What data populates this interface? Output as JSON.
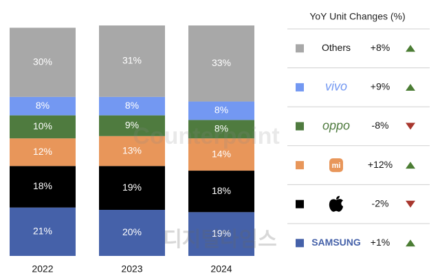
{
  "chart_data": {
    "type": "stacked-bar",
    "categories": [
      "2022",
      "2023",
      "2024"
    ],
    "series": [
      {
        "name": "SAMSUNG",
        "color": "#4561a9",
        "values": [
          21,
          20,
          19
        ],
        "value_labels": [
          "21%",
          "20%",
          "19%"
        ],
        "yoy": 1,
        "yoy_label": "+1%"
      },
      {
        "color": "#000000",
        "values": [
          18,
          19,
          18
        ],
        "value_labels": [
          "18%",
          "19%",
          "18%"
        ],
        "yoy": -2,
        "yoy_label": "-2%"
      },
      {
        "name": "mi",
        "color": "#e8965a",
        "values": [
          12,
          13,
          14
        ],
        "value_labels": [
          "12%",
          "13%",
          "14%"
        ],
        "yoy": 12,
        "yoy_label": "+12%"
      },
      {
        "name": "oppo",
        "color": "#4f7b3f",
        "values": [
          10,
          9,
          8
        ],
        "value_labels": [
          "10%",
          "9%",
          "8%"
        ],
        "yoy": -8,
        "yoy_label": "-8%"
      },
      {
        "name": "vivo",
        "color": "#7398f2",
        "values": [
          8,
          8,
          8
        ],
        "value_labels": [
          "8%",
          "8%",
          "8%"
        ],
        "yoy": 9,
        "yoy_label": "+9%"
      },
      {
        "name": "Others",
        "color": "#a8a8a8",
        "values": [
          30,
          31,
          33
        ],
        "value_labels": [
          "30%",
          "31%",
          "33%"
        ],
        "yoy": 8,
        "yoy_label": "+8%"
      }
    ],
    "legend_title": "YoY Unit Changes (%)",
    "watermarks": [
      "Counterpoint",
      "디지털타임스"
    ]
  }
}
